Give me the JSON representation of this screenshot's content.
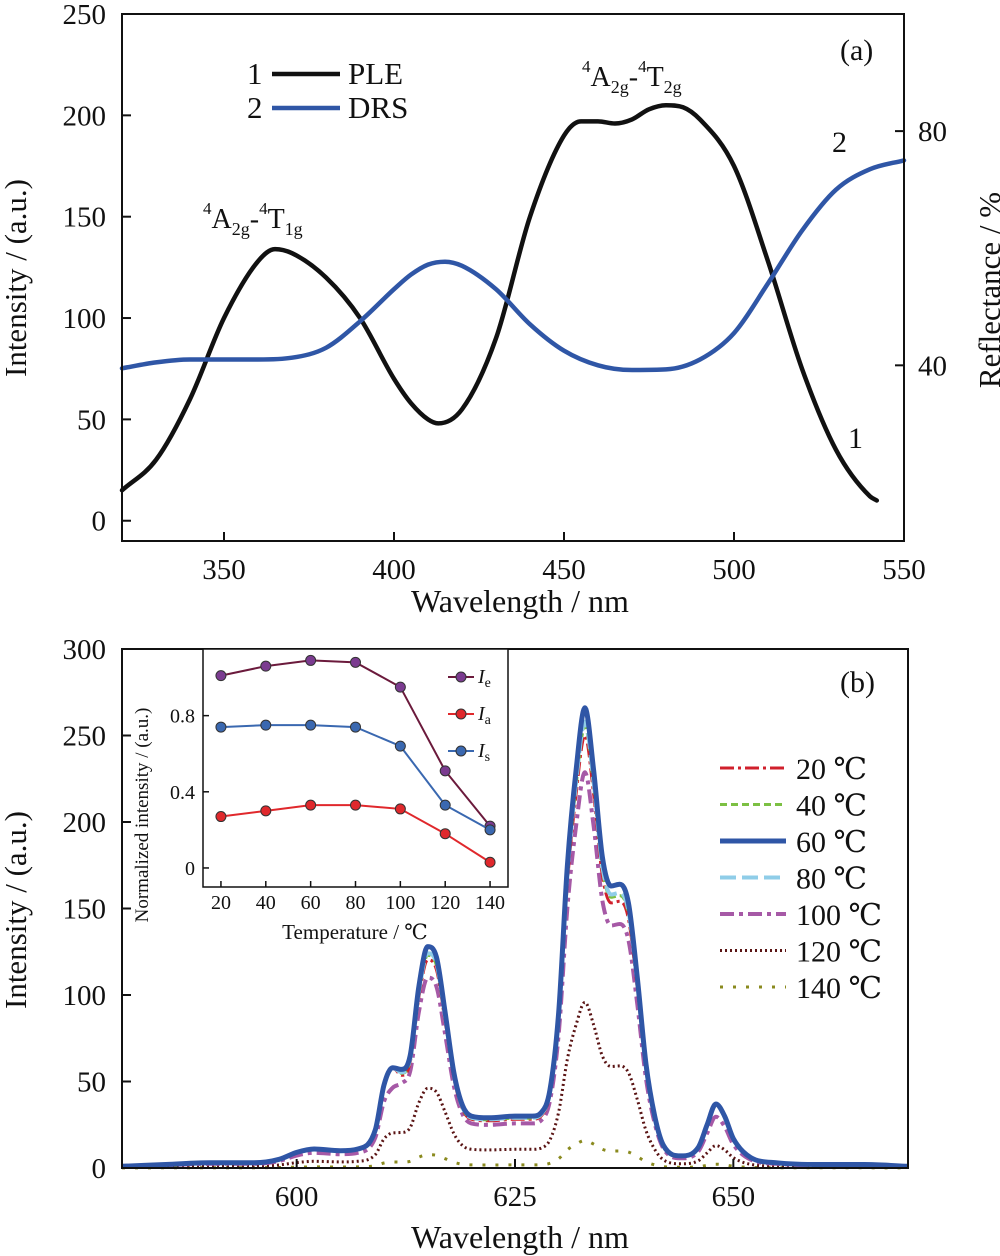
{
  "chart_data": [
    {
      "type": "line",
      "panel_label": "(a)",
      "xlabel": "Wavelength / nm",
      "ylabel": "Intensity / (a.u.)",
      "y2label": "Reflectance / %",
      "xlim": [
        320,
        550
      ],
      "ylim": [
        -10,
        250
      ],
      "y2lim": [
        10,
        100
      ],
      "xticks": [
        "350",
        "400",
        "450",
        "500",
        "550"
      ],
      "yticks": [
        "0",
        "50",
        "100",
        "150",
        "200",
        "250"
      ],
      "y2ticks": [
        "40",
        "80"
      ],
      "legend": [
        {
          "num": "1",
          "name": "PLE",
          "color": "#111111"
        },
        {
          "num": "2",
          "name": "DRS",
          "color": "#2f56a6"
        }
      ],
      "annotations": {
        "peak1": {
          "sup1": "4",
          "b1": "A",
          "sub1": "2g",
          "dash": "-",
          "sup2": "4",
          "b2": "T",
          "sub2": "1g"
        },
        "peak2": {
          "sup1": "4",
          "b1": "A",
          "sub1": "2g",
          "dash": "-",
          "sup2": "4",
          "b2": "T",
          "sub2": "2g"
        },
        "curve1_label": "1",
        "curve2_label": "2"
      },
      "series": [
        {
          "name": "PLE",
          "axis": "left",
          "color": "#111111",
          "x": [
            320,
            330,
            340,
            350,
            360,
            365,
            370,
            380,
            390,
            400,
            405,
            410,
            413,
            420,
            430,
            440,
            450,
            455,
            460,
            465,
            470,
            475,
            480,
            485,
            490,
            500,
            510,
            520,
            530,
            540,
            542
          ],
          "y": [
            15,
            30,
            60,
            100,
            128,
            134,
            132,
            120,
            100,
            70,
            58,
            50,
            48,
            55,
            90,
            150,
            190,
            197,
            197,
            196,
            198,
            203,
            205,
            204,
            198,
            175,
            128,
            75,
            35,
            12,
            10
          ]
        },
        {
          "name": "DRS",
          "axis": "right",
          "color": "#2f56a6",
          "x": [
            320,
            330,
            340,
            350,
            360,
            370,
            380,
            390,
            400,
            405,
            410,
            415,
            420,
            430,
            440,
            450,
            460,
            470,
            480,
            490,
            500,
            510,
            520,
            530,
            540,
            550
          ],
          "y": [
            39.5,
            40.5,
            41,
            41,
            41,
            41.3,
            43,
            47.5,
            53,
            55.5,
            57.2,
            57.7,
            57,
            53,
            47,
            42.5,
            40,
            39.2,
            39.3,
            41,
            45.5,
            54,
            63,
            70,
            73.5,
            75
          ]
        }
      ]
    },
    {
      "type": "line",
      "panel_label": "(b)",
      "xlabel": "Wavelength / nm",
      "ylabel": "Intensity / (a.u.)",
      "xlim": [
        580,
        670
      ],
      "ylim": [
        0,
        300
      ],
      "xticks": [
        "600",
        "625",
        "650"
      ],
      "yticks": [
        "0",
        "50",
        "100",
        "150",
        "200",
        "250",
        "300"
      ],
      "series": [
        {
          "name": "20 ℃",
          "color": "#d0202c",
          "dash": "14,4,3,4",
          "width": 3,
          "scale": 0.94,
          "t": 1
        },
        {
          "name": "40 ℃",
          "color": "#7cc043",
          "dash": "7,4",
          "width": 3,
          "scale": 0.96,
          "t": 1
        },
        {
          "name": "60 ℃",
          "color": "#2f56a6",
          "dash": "",
          "width": 5,
          "scale": 1.0,
          "t": 1
        },
        {
          "name": "80 ℃",
          "color": "#8fcde8",
          "dash": "16,6",
          "width": 4,
          "scale": 0.97,
          "t": 1
        },
        {
          "name": "100 ℃",
          "color": "#a659a6",
          "dash": "14,5,4,5",
          "width": 4,
          "scale": 0.86,
          "t": 0.8
        },
        {
          "name": "120 ℃",
          "color": "#5a1414",
          "dash": "2,3",
          "width": 3,
          "scale": 0.36,
          "t": 0.35
        },
        {
          "name": "140 ℃",
          "color": "#8a8a1e",
          "dash": "3,10",
          "width": 3,
          "scale": 0.06,
          "t": 0.06
        }
      ],
      "base_spectrum": {
        "x": [
          580,
          585,
          590,
          595,
          598,
          600,
          602,
          605,
          607,
          609,
          610,
          611,
          612,
          613,
          614,
          615,
          616,
          617,
          618,
          619,
          620,
          622,
          625,
          627,
          628,
          629,
          630,
          631,
          632,
          633,
          634,
          635,
          636,
          637,
          638,
          639,
          640,
          641,
          642,
          644,
          646,
          647,
          648,
          649,
          650,
          652,
          655,
          660,
          665,
          670
        ],
        "y": [
          1,
          2,
          3,
          3,
          5,
          9,
          11,
          10,
          11,
          22,
          48,
          58,
          57,
          65,
          105,
          128,
          122,
          90,
          55,
          36,
          30,
          29,
          30,
          30,
          32,
          45,
          90,
          175,
          230,
          266,
          230,
          180,
          163,
          164,
          153,
          110,
          60,
          30,
          13,
          7,
          12,
          25,
          37,
          30,
          17,
          6,
          3,
          2,
          2,
          1
        ]
      }
    },
    {
      "type": "line",
      "inset": true,
      "xlabel": "Temperature / ℃",
      "ylabel": "Normalized intensity / (a.u.)",
      "xlim": [
        12,
        148
      ],
      "ylim": [
        -0.1,
        1.15
      ],
      "xticks": [
        "20",
        "40",
        "60",
        "80",
        "100",
        "120",
        "140"
      ],
      "yticks": [
        "0",
        "0.4",
        "0.8"
      ],
      "x": [
        20,
        40,
        60,
        80,
        100,
        120,
        140
      ],
      "series": [
        {
          "name": "I",
          "sub": "e",
          "color": "#6b1a3c",
          "marker": "#7b3b90",
          "values": [
            1.01,
            1.06,
            1.09,
            1.08,
            0.95,
            0.51,
            0.22
          ]
        },
        {
          "name": "I",
          "sub": "a",
          "color": "#e0282c",
          "marker": "#e0282c",
          "values": [
            0.27,
            0.3,
            0.33,
            0.33,
            0.31,
            0.18,
            0.03
          ]
        },
        {
          "name": "I",
          "sub": "s",
          "color": "#3a68b0",
          "marker": "#3a68b0",
          "values": [
            0.74,
            0.75,
            0.75,
            0.74,
            0.64,
            0.33,
            0.2
          ]
        }
      ]
    }
  ]
}
